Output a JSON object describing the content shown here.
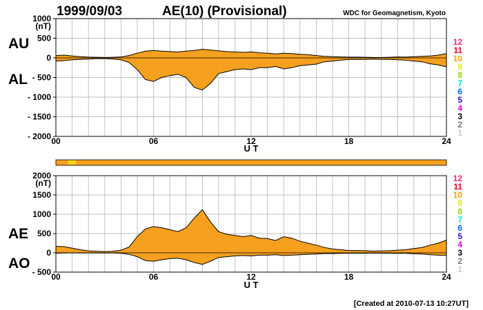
{
  "header": {
    "date": "1999/09/03",
    "title": "AE(10) (Provisional)",
    "source": "WDC for Geomagnetism, Kyoto"
  },
  "footer": {
    "created": "[Created at 2010-07-13 10:27UT]"
  },
  "colors": {
    "fill": "#f5a01e",
    "fill_alt": "#f7d617",
    "envelope": "#000000",
    "grid": "#aaaaaa",
    "axis": "#000000"
  },
  "legend": {
    "items": [
      {
        "label": "12",
        "color": "#ff1e7e"
      },
      {
        "label": "11",
        "color": "#e8001f"
      },
      {
        "label": "10",
        "color": "#ffa000"
      },
      {
        "label": "9",
        "color": "#e6e600"
      },
      {
        "label": "8",
        "color": "#8ae000"
      },
      {
        "label": "7",
        "color": "#00d6e6"
      },
      {
        "label": "6",
        "color": "#0066ff"
      },
      {
        "label": "5",
        "color": "#3300cc"
      },
      {
        "label": "4",
        "color": "#dd00dd"
      },
      {
        "label": "3",
        "color": "#000000"
      },
      {
        "label": "2",
        "color": "#777777"
      },
      {
        "label": "1",
        "color": "#cccccc"
      }
    ]
  },
  "chart_data": [
    {
      "type": "area",
      "panel": "top",
      "series_labels": {
        "upper": "AU",
        "lower": "AL"
      },
      "yunit": "(nT)",
      "ylim": [
        -2000,
        1000
      ],
      "yticks": [
        "1000",
        "500",
        "0",
        "- 500",
        "- 1000",
        "- 1500",
        "- 2000"
      ],
      "ytick_values": [
        1000,
        500,
        0,
        -500,
        -1000,
        -1500,
        -2000
      ],
      "xlabel": "U T",
      "xlim": [
        0,
        24
      ],
      "xticks": [
        "00",
        "06",
        "12",
        "18",
        "24"
      ],
      "xtick_values": [
        0,
        6,
        12,
        18,
        24
      ],
      "grid": true,
      "x": [
        0,
        0.5,
        1,
        1.5,
        2,
        2.5,
        3,
        3.5,
        4,
        4.5,
        5,
        5.5,
        6,
        6.5,
        7,
        7.5,
        8,
        8.5,
        9,
        9.5,
        10,
        10.5,
        11,
        11.5,
        12,
        12.5,
        13,
        13.5,
        14,
        14.5,
        15,
        15.5,
        16,
        16.5,
        17,
        17.5,
        18,
        18.5,
        19,
        19.5,
        20,
        20.5,
        21,
        21.5,
        22,
        22.5,
        23,
        23.5,
        24
      ],
      "upper": [
        60,
        70,
        50,
        30,
        20,
        15,
        10,
        15,
        25,
        60,
        120,
        170,
        190,
        170,
        160,
        150,
        170,
        190,
        220,
        200,
        180,
        160,
        150,
        140,
        150,
        130,
        120,
        100,
        120,
        110,
        90,
        80,
        60,
        40,
        30,
        25,
        20,
        20,
        15,
        10,
        10,
        15,
        25,
        20,
        30,
        40,
        50,
        70,
        110
      ],
      "lower": [
        -80,
        -70,
        -50,
        -40,
        -30,
        -20,
        -20,
        -30,
        -50,
        -120,
        -300,
        -550,
        -600,
        -500,
        -450,
        -420,
        -500,
        -750,
        -820,
        -650,
        -400,
        -350,
        -300,
        -280,
        -300,
        -250,
        -250,
        -220,
        -280,
        -250,
        -200,
        -180,
        -160,
        -100,
        -80,
        -60,
        -40,
        -40,
        -40,
        -30,
        -40,
        -40,
        -50,
        -60,
        -80,
        -100,
        -150,
        -180,
        -230
      ]
    },
    {
      "type": "area",
      "panel": "bottom",
      "series_labels": {
        "upper": "AE",
        "lower": "AO"
      },
      "yunit": "(nT)",
      "ylim": [
        -500,
        2000
      ],
      "yticks": [
        "2000",
        "1500",
        "1000",
        "500",
        "0",
        "- 500"
      ],
      "ytick_values": [
        2000,
        1500,
        1000,
        500,
        0,
        -500
      ],
      "xlabel": "U T",
      "xlim": [
        0,
        24
      ],
      "xticks": [
        "00",
        "06",
        "12",
        "18",
        "24"
      ],
      "xtick_values": [
        0,
        6,
        12,
        18,
        24
      ],
      "grid": true,
      "x": [
        0,
        0.5,
        1,
        1.5,
        2,
        2.5,
        3,
        3.5,
        4,
        4.5,
        5,
        5.5,
        6,
        6.5,
        7,
        7.5,
        8,
        8.5,
        9,
        9.5,
        10,
        10.5,
        11,
        11.5,
        12,
        12.5,
        13,
        13.5,
        14,
        14.5,
        15,
        15.5,
        16,
        16.5,
        17,
        17.5,
        18,
        18.5,
        19,
        19.5,
        20,
        20.5,
        21,
        21.5,
        22,
        22.5,
        23,
        23.5,
        24
      ],
      "upper": [
        170,
        160,
        120,
        80,
        50,
        40,
        30,
        40,
        70,
        150,
        420,
        620,
        680,
        650,
        600,
        550,
        650,
        900,
        1120,
        800,
        550,
        480,
        450,
        420,
        450,
        380,
        370,
        320,
        420,
        380,
        300,
        250,
        200,
        140,
        100,
        80,
        60,
        60,
        55,
        45,
        50,
        55,
        70,
        80,
        110,
        140,
        200,
        250,
        330
      ],
      "lower": [
        -10,
        -5,
        0,
        -5,
        -5,
        -5,
        -5,
        -5,
        -10,
        -40,
        -100,
        -200,
        -220,
        -180,
        -150,
        -140,
        -180,
        -250,
        -300,
        -220,
        -120,
        -100,
        -80,
        -70,
        -80,
        -60,
        -60,
        -50,
        -70,
        -60,
        -50,
        -40,
        -30,
        -20,
        -20,
        -15,
        -10,
        -10,
        -10,
        -8,
        -10,
        -10,
        -12,
        -15,
        -25,
        -30,
        -50,
        -60,
        -70
      ]
    }
  ]
}
